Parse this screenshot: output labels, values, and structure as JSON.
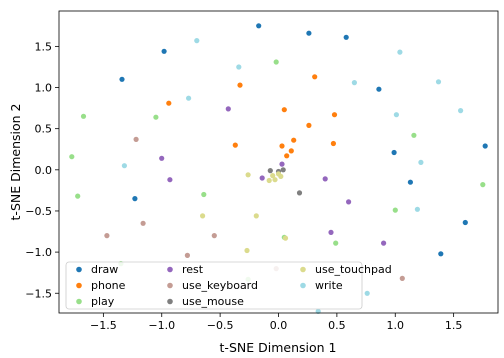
{
  "chart_data": {
    "type": "scatter",
    "title": "",
    "xlabel": "t-SNE Dimension 1",
    "ylabel": "t-SNE Dimension 2",
    "xlim": [
      -1.88,
      1.88
    ],
    "ylim": [
      -1.74,
      1.93
    ],
    "xticks": [
      -1.5,
      -1.0,
      -0.5,
      0.0,
      0.5,
      1.0,
      1.5
    ],
    "yticks": [
      -1.5,
      -1.0,
      -0.5,
      0.0,
      0.5,
      1.0,
      1.5
    ],
    "xtick_labels": [
      "−1.5",
      "−1.0",
      "−0.5",
      "0.0",
      "0.5",
      "1.0",
      "1.5"
    ],
    "ytick_labels": [
      "−1.5",
      "−1.0",
      "−0.5",
      "0.0",
      "0.5",
      "1.0",
      "1.5"
    ],
    "grid": false,
    "legend_position": "bottom-left",
    "series": [
      {
        "name": "draw",
        "color": "#1f77b4",
        "points": [
          [
            -0.17,
            1.75
          ],
          [
            0.26,
            1.66
          ],
          [
            0.58,
            1.61
          ],
          [
            -0.98,
            1.44
          ],
          [
            -1.34,
            1.1
          ],
          [
            0.86,
            0.98
          ],
          [
            -1.23,
            -0.35
          ],
          [
            1.77,
            0.29
          ],
          [
            0.99,
            0.21
          ],
          [
            1.13,
            -0.15
          ],
          [
            1.6,
            -0.64
          ],
          [
            1.39,
            -1.02
          ]
        ]
      },
      {
        "name": "phone",
        "color": "#ff7f0e",
        "points": [
          [
            0.31,
            1.13
          ],
          [
            -0.33,
            1.03
          ],
          [
            -0.94,
            0.81
          ],
          [
            0.05,
            0.73
          ],
          [
            0.48,
            0.67
          ],
          [
            0.26,
            0.54
          ],
          [
            0.13,
            0.36
          ],
          [
            0.03,
            0.29
          ],
          [
            0.11,
            0.23
          ],
          [
            0.07,
            0.17
          ],
          [
            0.47,
            0.32
          ],
          [
            -0.37,
            0.3
          ]
        ]
      },
      {
        "name": "play",
        "color": "#98df8a",
        "points": [
          [
            -0.02,
            1.31
          ],
          [
            -1.05,
            0.64
          ],
          [
            -1.67,
            0.65
          ],
          [
            -1.77,
            0.16
          ],
          [
            -1.72,
            -0.32
          ],
          [
            -0.64,
            -0.3
          ],
          [
            -1.35,
            -1.14
          ],
          [
            -0.26,
            -1.33
          ],
          [
            0.05,
            -0.82
          ],
          [
            0.49,
            -0.89
          ],
          [
            1.0,
            -0.49
          ],
          [
            1.75,
            -0.18
          ],
          [
            1.16,
            0.42
          ]
        ]
      },
      {
        "name": "rest",
        "color": "#9467bd",
        "points": [
          [
            -0.43,
            0.74
          ],
          [
            0.03,
            0.07
          ],
          [
            -1.0,
            0.14
          ],
          [
            -0.93,
            -0.12
          ],
          [
            -0.14,
            -0.1
          ],
          [
            0.4,
            -0.11
          ],
          [
            0.6,
            -0.39
          ],
          [
            0.45,
            -0.76
          ],
          [
            0.9,
            -0.89
          ]
        ]
      },
      {
        "name": "use_keyboard",
        "color": "#c49c94",
        "points": [
          [
            -1.22,
            0.37
          ],
          [
            -1.16,
            -0.65
          ],
          [
            -1.47,
            -0.8
          ],
          [
            -0.78,
            -1.04
          ],
          [
            -0.55,
            -0.8
          ],
          [
            -0.02,
            -1.2
          ],
          [
            1.06,
            -1.32
          ]
        ]
      },
      {
        "name": "use_mouse",
        "color": "#7f7f7f",
        "points": [
          [
            -0.07,
            -0.01
          ],
          [
            0.0,
            -0.02
          ],
          [
            0.04,
            0.0
          ],
          [
            0.18,
            -0.28
          ]
        ]
      },
      {
        "name": "use_touchpad",
        "color": "#dbdb8d",
        "points": [
          [
            -0.26,
            -0.06
          ],
          [
            -0.05,
            -0.07
          ],
          [
            -0.03,
            -0.12
          ],
          [
            -0.08,
            -0.13
          ],
          [
            0.0,
            -0.05
          ],
          [
            0.02,
            -0.08
          ],
          [
            -0.65,
            -0.56
          ],
          [
            -0.19,
            -0.56
          ],
          [
            0.06,
            -0.83
          ],
          [
            -0.27,
            -0.98
          ]
        ]
      },
      {
        "name": "write",
        "color": "#9edae5",
        "points": [
          [
            -0.7,
            1.57
          ],
          [
            -0.34,
            1.25
          ],
          [
            0.65,
            1.06
          ],
          [
            1.04,
            1.43
          ],
          [
            1.37,
            1.07
          ],
          [
            1.56,
            0.72
          ],
          [
            -0.77,
            0.87
          ],
          [
            1.01,
            0.67
          ],
          [
            1.22,
            0.09
          ],
          [
            -1.32,
            0.05
          ],
          [
            1.19,
            -0.48
          ],
          [
            0.76,
            -1.5
          ],
          [
            0.34,
            -1.72
          ]
        ]
      }
    ]
  }
}
